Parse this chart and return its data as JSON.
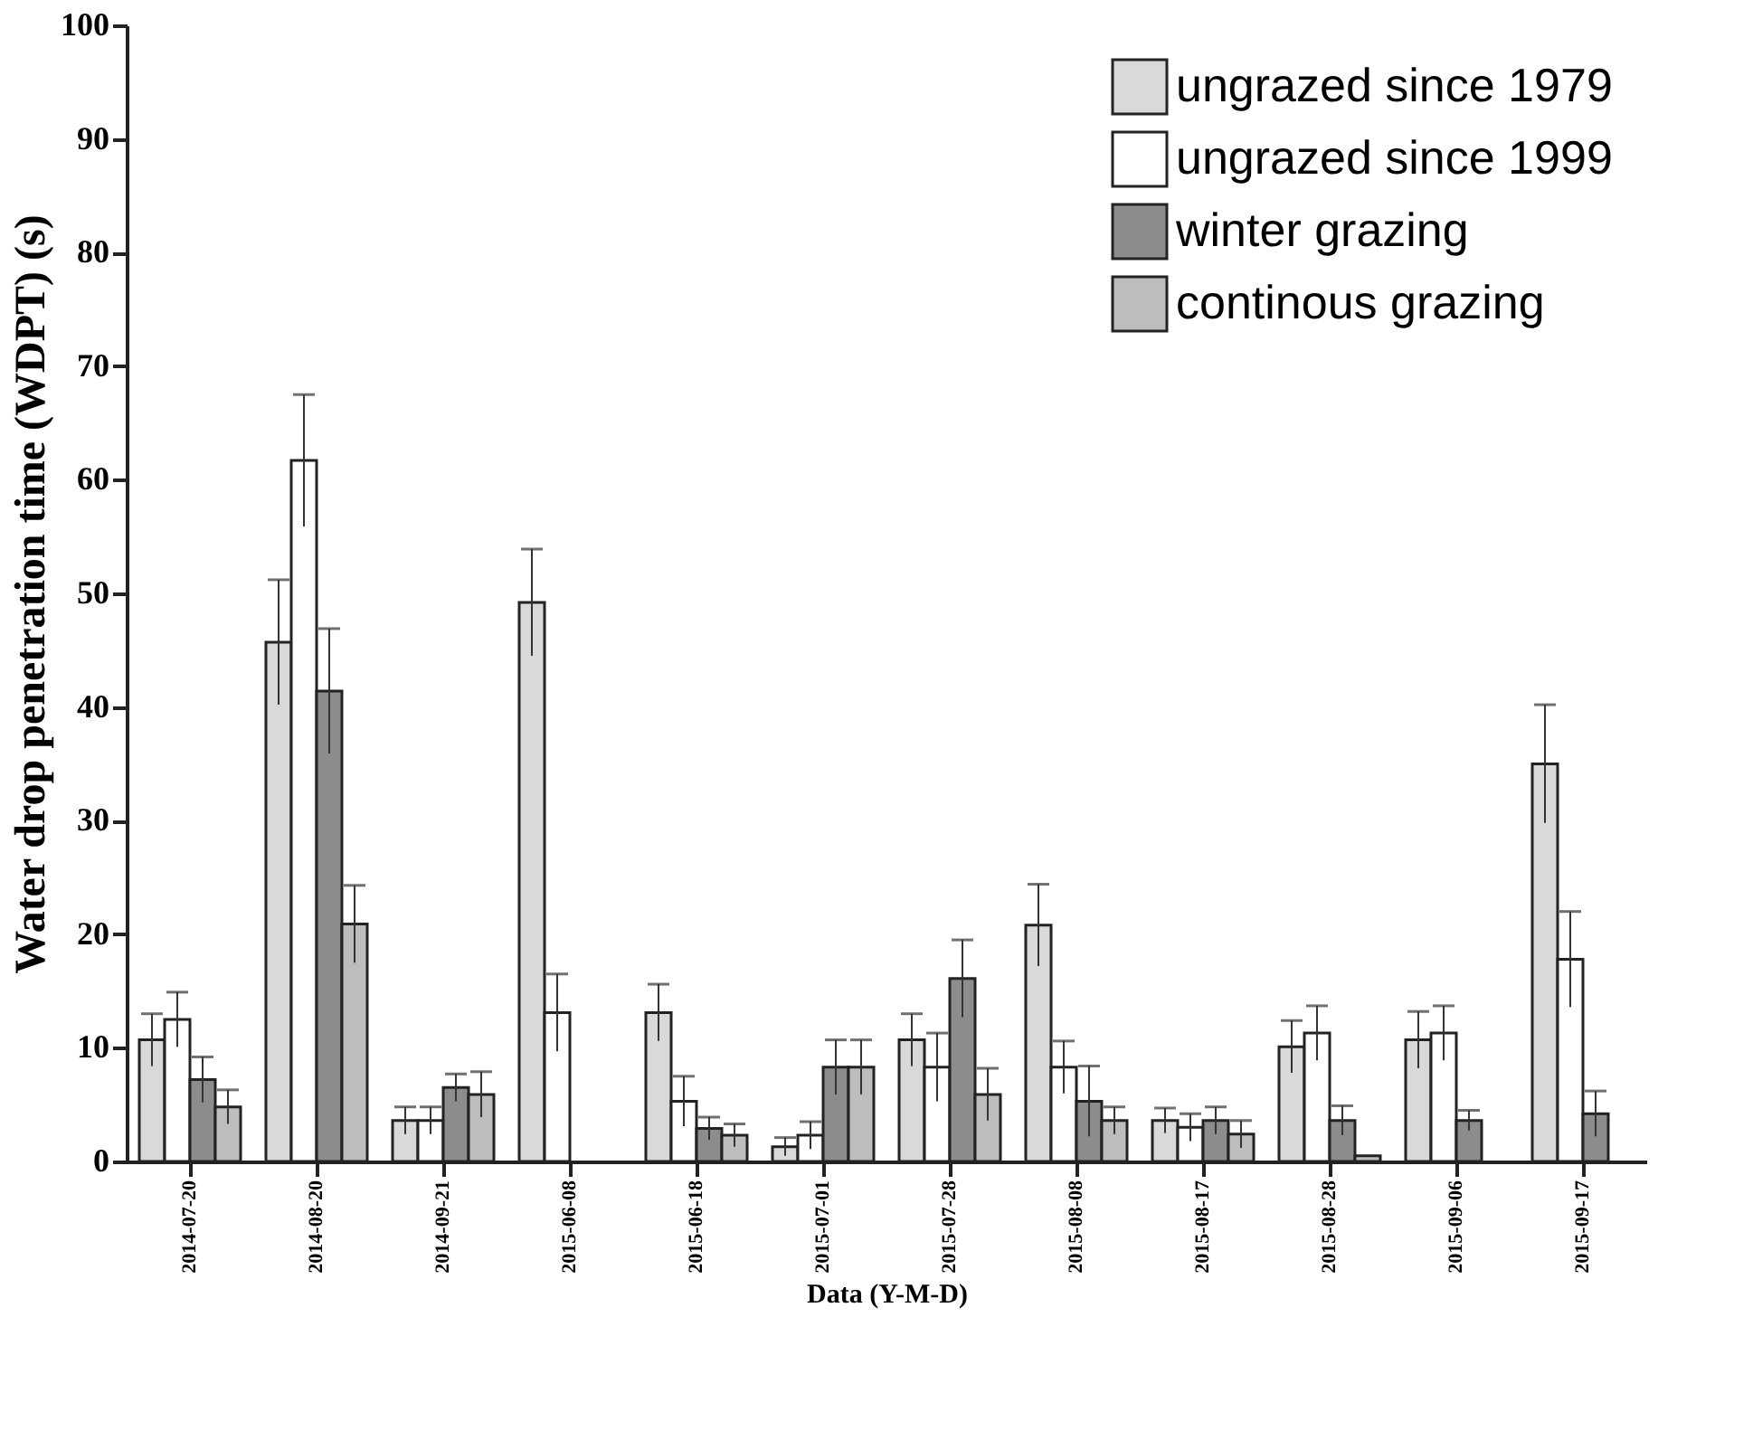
{
  "chart_data": {
    "type": "bar",
    "xlabel": "Data (Y-M-D)",
    "ylabel": "Water drop penetration time (WDPT) (s)",
    "categories": [
      "2014-07-20",
      "2014-08-20",
      "2014-09-21",
      "2015-06-08",
      "2015-06-18",
      "2015-07-01",
      "2015-07-28",
      "2015-08-08",
      "2015-08-17",
      "2015-08-28",
      "2015-09-06",
      "2015-09-17"
    ],
    "series": [
      {
        "name": "ungrazed since 1979",
        "color": "#d9d9d9",
        "values": [
          10.7,
          45.7,
          3.6,
          49.2,
          13.1,
          1.3,
          10.7,
          20.8,
          3.6,
          10.1,
          10.7,
          35.0
        ],
        "errors": [
          2.3,
          5.5,
          1.2,
          4.7,
          2.5,
          0.8,
          2.3,
          3.6,
          1.1,
          2.3,
          2.5,
          5.2
        ]
      },
      {
        "name": "ungrazed since 1999",
        "color": "#ffffff",
        "values": [
          12.5,
          61.7,
          3.6,
          13.1,
          5.3,
          2.3,
          8.3,
          8.3,
          3.0,
          11.3,
          11.3,
          17.8
        ],
        "errors": [
          2.4,
          5.8,
          1.2,
          3.4,
          2.2,
          1.2,
          3.0,
          2.3,
          1.2,
          2.4,
          2.4,
          4.2
        ]
      },
      {
        "name": "winter grazing",
        "color": "#8c8c8c",
        "values": [
          7.2,
          41.4,
          6.5,
          null,
          2.9,
          8.3,
          16.1,
          5.3,
          3.6,
          3.6,
          3.6,
          4.2
        ],
        "errors": [
          2.0,
          5.5,
          1.2,
          null,
          1.0,
          2.4,
          3.4,
          3.1,
          1.2,
          1.3,
          0.9,
          2.0
        ]
      },
      {
        "name": "continous grazing",
        "color": "#bdbdbd",
        "values": [
          4.8,
          20.9,
          5.9,
          null,
          2.3,
          8.3,
          5.9,
          3.6,
          2.4,
          0.5,
          null,
          null
        ],
        "errors": [
          1.5,
          3.4,
          2.0,
          null,
          1.0,
          2.4,
          2.3,
          1.2,
          1.2,
          null,
          null,
          null
        ]
      }
    ],
    "ylim": [
      0,
      100
    ],
    "yticks": [
      0,
      10,
      20,
      30,
      40,
      50,
      60,
      70,
      80,
      90,
      100
    ],
    "grid": false,
    "legend": "top right"
  }
}
